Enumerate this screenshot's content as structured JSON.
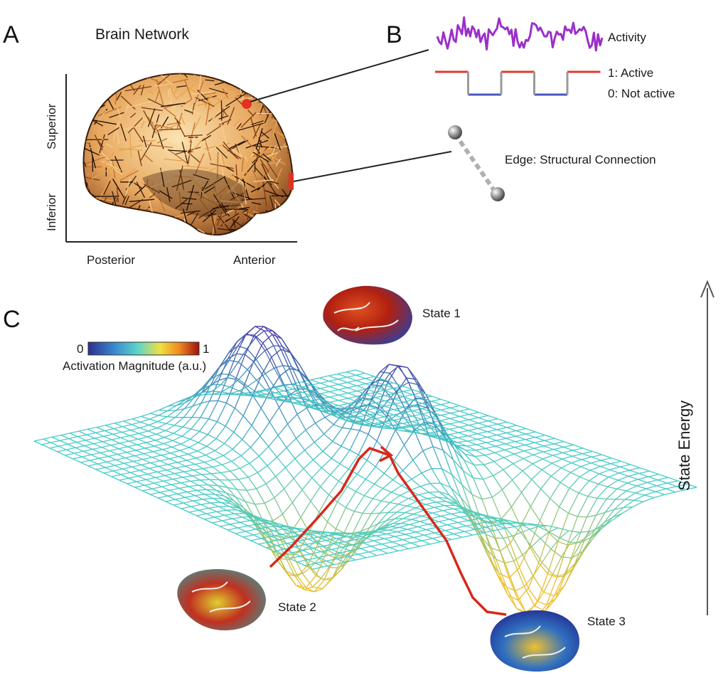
{
  "panels": {
    "a": {
      "letter": "A",
      "title": "Brain Network",
      "axis_superior": "Superior",
      "axis_inferior": "Inferior",
      "axis_posterior": "Posterior",
      "axis_anterior": "Anterior"
    },
    "b": {
      "letter": "B",
      "activity_label": "Activity",
      "active_label": "1: Active",
      "not_active_label": "0: Not active",
      "edge_label": "Edge: Structural Connection"
    },
    "c": {
      "letter": "C",
      "colorbar_min": "0",
      "colorbar_max": "1",
      "colorbar_label": "Activation Magnitude (a.u.)",
      "state_energy_label": "State Energy",
      "state1_label": "State 1",
      "state2_label": "State 2",
      "state3_label": "State 3"
    }
  },
  "colors": {
    "activity_trace": "#9b30c8",
    "active_line": "#e03a2a",
    "inactive_line": "#4a55c0",
    "transition_line": "#9a9a9a",
    "node_marker": "#e53020",
    "trajectory": "#d8281c"
  },
  "binary_states": [
    1,
    0,
    1,
    0,
    1
  ]
}
